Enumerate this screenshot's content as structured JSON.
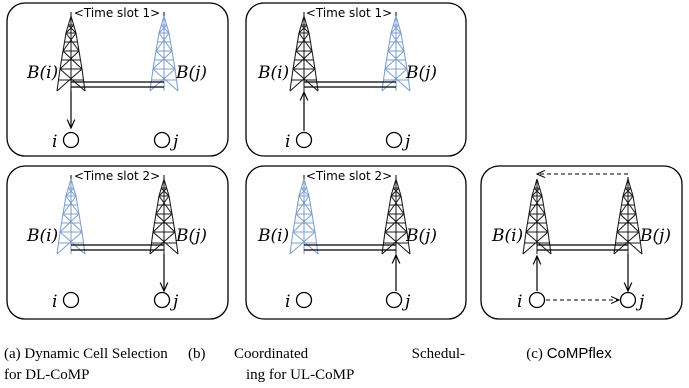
{
  "colors": {
    "active_tower": "#1a1a1a",
    "inactive_tower": "#7f9fcf"
  },
  "icons": {
    "tower": "cell-tower-icon",
    "user": "user-equipment-icon"
  },
  "panels": {
    "a1": {
      "time_slot": "<Time slot 1>",
      "base_i": "B(i)",
      "base_j": "B(j)",
      "user_i": "i",
      "user_j": "j"
    },
    "a2": {
      "time_slot": "<Time slot 2>",
      "base_i": "B(i)",
      "base_j": "B(j)",
      "user_i": "i",
      "user_j": "j"
    },
    "b1": {
      "time_slot": "<Time slot 1>",
      "base_i": "B(i)",
      "base_j": "B(j)",
      "user_i": "i",
      "user_j": "j"
    },
    "b2": {
      "time_slot": "<Time slot 2>",
      "base_i": "B(i)",
      "base_j": "B(j)",
      "user_i": "i",
      "user_j": "j"
    },
    "c": {
      "base_i": "B(i)",
      "base_j": "B(j)",
      "user_i": "i",
      "user_j": "j"
    }
  },
  "captions": {
    "a_line1": "(a) Dynamic Cell Selection",
    "a_line2": "for DL-CoMP",
    "b_line1_prefix": "(b)",
    "b_word1": "Coordinated",
    "b_word2": "Schedul-",
    "b_line2": "ing for UL-CoMP",
    "c_prefix": "(c) ",
    "c_name": "CoMPflex"
  }
}
